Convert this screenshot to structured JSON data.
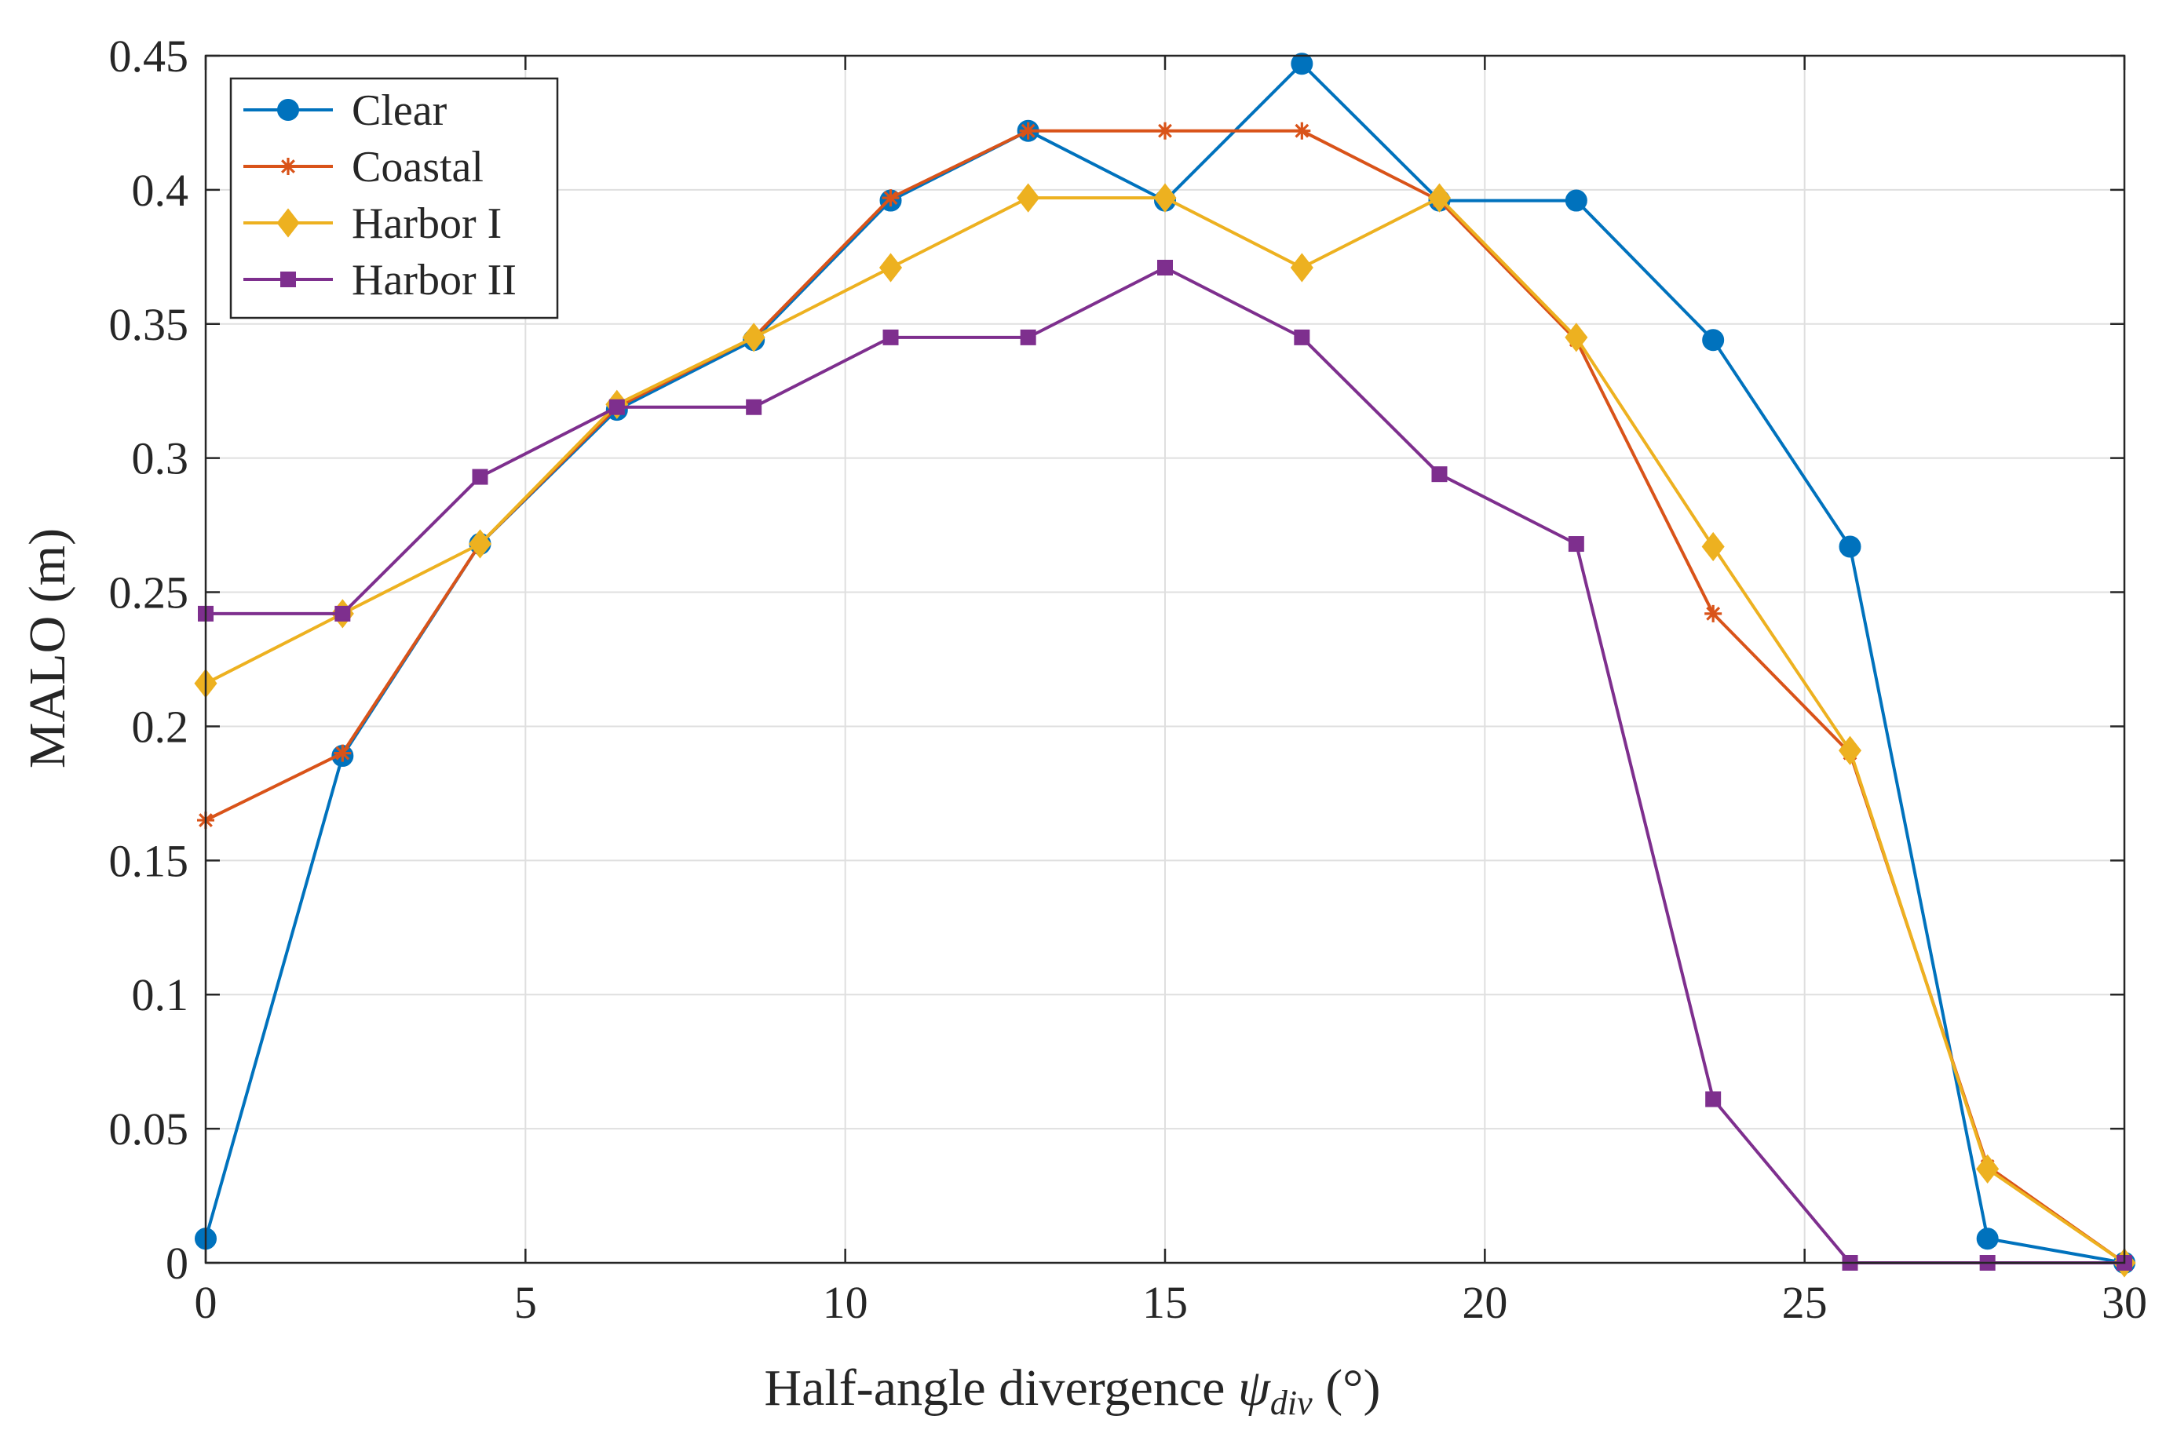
{
  "chart_data": {
    "type": "line",
    "title": "",
    "xlabel": "Half-angle divergence",
    "xlabel_symbol": "ψ",
    "xlabel_subscript": "div",
    "xlabel_unit": "(°)",
    "ylabel": "MALO (m)",
    "xlim": [
      0,
      30
    ],
    "ylim": [
      0,
      0.45
    ],
    "xticks": [
      0,
      5,
      10,
      15,
      20,
      25,
      30
    ],
    "xtick_labels": [
      "0",
      "5",
      "10",
      "15",
      "20",
      "25",
      "30"
    ],
    "yticks": [
      0,
      0.05,
      0.1,
      0.15,
      0.2,
      0.25,
      0.3,
      0.35,
      0.4,
      0.45
    ],
    "ytick_labels": [
      "0",
      "0.05",
      "0.1",
      "0.15",
      "0.2",
      "0.25",
      "0.3",
      "0.35",
      "0.4",
      "0.45"
    ],
    "grid": true,
    "legend_position": "top-left",
    "x": [
      0,
      2.14,
      4.29,
      6.43,
      8.57,
      10.71,
      12.86,
      15.0,
      17.14,
      19.29,
      21.43,
      23.57,
      25.71,
      27.86,
      30.0
    ],
    "series": [
      {
        "name": "Clear",
        "color": "#0072BD",
        "marker": "circle",
        "values": [
          0.009,
          0.189,
          0.268,
          0.318,
          0.344,
          0.396,
          0.422,
          0.396,
          0.447,
          0.396,
          0.396,
          0.344,
          0.267,
          0.009,
          0.0
        ]
      },
      {
        "name": "Coastal",
        "color": "#D95319",
        "marker": "asterisk",
        "values": [
          0.165,
          0.19,
          0.268,
          0.319,
          0.345,
          0.397,
          0.422,
          0.422,
          0.422,
          0.396,
          0.344,
          0.242,
          0.19,
          0.036,
          0.0
        ]
      },
      {
        "name": "Harbor I",
        "color": "#EDB120",
        "marker": "diamond",
        "values": [
          0.216,
          0.242,
          0.268,
          0.32,
          0.345,
          0.371,
          0.397,
          0.397,
          0.371,
          0.397,
          0.345,
          0.267,
          0.191,
          0.035,
          0.0
        ]
      },
      {
        "name": "Harbor II",
        "color": "#7E2F8E",
        "marker": "square",
        "values": [
          0.242,
          0.242,
          0.293,
          0.319,
          0.319,
          0.345,
          0.345,
          0.371,
          0.345,
          0.294,
          0.268,
          0.061,
          0.0,
          0.0,
          0.0
        ]
      }
    ]
  }
}
